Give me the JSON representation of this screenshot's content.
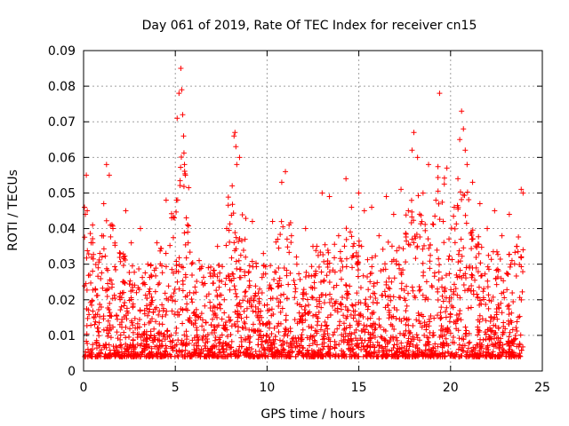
{
  "chart_data": {
    "type": "scatter",
    "title": "Day 061 of 2019, Rate Of TEC Index for receiver cn15",
    "xlabel": "GPS time / hours",
    "ylabel": "ROTI / TECUs",
    "xlim": [
      0,
      25
    ],
    "ylim": [
      0,
      0.09
    ],
    "x_ticks": [
      0,
      5,
      10,
      15,
      20,
      25
    ],
    "x_tick_labels": [
      "0",
      "5",
      "10",
      "15",
      "20",
      "25"
    ],
    "y_ticks": [
      0,
      0.01,
      0.02,
      0.03,
      0.04,
      0.05,
      0.06,
      0.07,
      0.08,
      0.09
    ],
    "y_tick_labels": [
      "0",
      "0.01",
      "0.02",
      "0.03",
      "0.04",
      "0.05",
      "0.06",
      "0.07",
      "0.08",
      "0.09"
    ],
    "grid": true,
    "marker": "+",
    "color": "#ff0000",
    "series": [
      {
        "name": "ROTI",
        "x": [
          0.05,
          0.1,
          0.15,
          0.2,
          0.5,
          1.0,
          1.1,
          1.25,
          1.4,
          1.6,
          2.0,
          2.3,
          2.6,
          3.1,
          3.5,
          4.0,
          4.5,
          4.8,
          5.1,
          5.2,
          5.3,
          5.35,
          5.4,
          5.45,
          5.5,
          5.55,
          5.6,
          5.7,
          6.3,
          6.8,
          7.3,
          7.8,
          8.1,
          8.2,
          8.25,
          8.3,
          8.35,
          8.5,
          8.8,
          9.2,
          9.8,
          10.3,
          10.8,
          11.0,
          11.2,
          11.6,
          12.1,
          12.5,
          13.0,
          13.4,
          13.9,
          14.3,
          14.6,
          15.0,
          15.3,
          15.7,
          16.1,
          16.5,
          16.9,
          17.3,
          17.7,
          17.9,
          18.0,
          18.2,
          18.5,
          18.8,
          19.2,
          19.4,
          19.6,
          19.8,
          20.2,
          20.4,
          20.5,
          20.6,
          20.7,
          20.8,
          20.9,
          21.2,
          21.6,
          22.0,
          22.4,
          22.8,
          23.2,
          23.6,
          23.85,
          23.95
        ],
        "y": [
          0.046,
          0.044,
          0.055,
          0.045,
          0.036,
          0.038,
          0.047,
          0.058,
          0.055,
          0.04,
          0.033,
          0.045,
          0.036,
          0.04,
          0.03,
          0.036,
          0.048,
          0.043,
          0.071,
          0.078,
          0.085,
          0.079,
          0.072,
          0.066,
          0.058,
          0.055,
          0.043,
          0.036,
          0.031,
          0.029,
          0.035,
          0.04,
          0.052,
          0.066,
          0.067,
          0.063,
          0.058,
          0.06,
          0.037,
          0.042,
          0.033,
          0.042,
          0.053,
          0.056,
          0.041,
          0.032,
          0.04,
          0.035,
          0.05,
          0.049,
          0.038,
          0.054,
          0.046,
          0.05,
          0.045,
          0.046,
          0.038,
          0.049,
          0.044,
          0.051,
          0.045,
          0.062,
          0.067,
          0.06,
          0.05,
          0.058,
          0.048,
          0.078,
          0.042,
          0.057,
          0.046,
          0.054,
          0.065,
          0.073,
          0.068,
          0.062,
          0.058,
          0.053,
          0.047,
          0.04,
          0.045,
          0.038,
          0.044,
          0.035,
          0.051,
          0.05
        ]
      }
    ]
  }
}
